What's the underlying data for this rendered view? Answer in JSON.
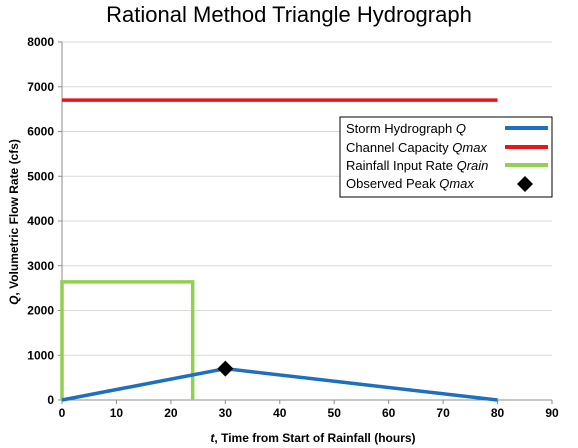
{
  "chart_data": {
    "type": "line",
    "title": "Rational Method Triangle Hydrograph",
    "xlabel_prefix": "t",
    "xlabel_rest": ", Time from Start of Rainfall (hours)",
    "ylabel_prefix": "Q",
    "ylabel_rest": ", Volumetric Flow Rate (cfs)",
    "xlim": [
      0,
      90
    ],
    "ylim": [
      0,
      8000
    ],
    "xticks": [
      0,
      10,
      20,
      30,
      40,
      50,
      60,
      70,
      80,
      90
    ],
    "yticks": [
      0,
      1000,
      2000,
      3000,
      4000,
      5000,
      6000,
      7000,
      8000
    ],
    "grid": "horizontal",
    "legend_position": "right",
    "series": [
      {
        "name": "Storm Hydrograph",
        "name_var": "Q",
        "color": "#1f6fbf",
        "marker": "line",
        "x": [
          0,
          30,
          80
        ],
        "y": [
          0,
          700,
          0
        ]
      },
      {
        "name": "Channel Capacity",
        "name_var": "Qmax",
        "color": "#e8141c",
        "marker": "line",
        "x": [
          0,
          80
        ],
        "y": [
          6700,
          6700
        ]
      },
      {
        "name": "Rainfall Input Rate",
        "name_var": "Qrain",
        "color": "#92d050",
        "marker": "line",
        "x": [
          0,
          0,
          24,
          24
        ],
        "y": [
          0,
          2640,
          2640,
          0
        ]
      },
      {
        "name": "Observed Peak",
        "name_var": "Qmax",
        "color": "#000000",
        "marker": "diamond",
        "x": [
          30
        ],
        "y": [
          700
        ]
      }
    ]
  }
}
